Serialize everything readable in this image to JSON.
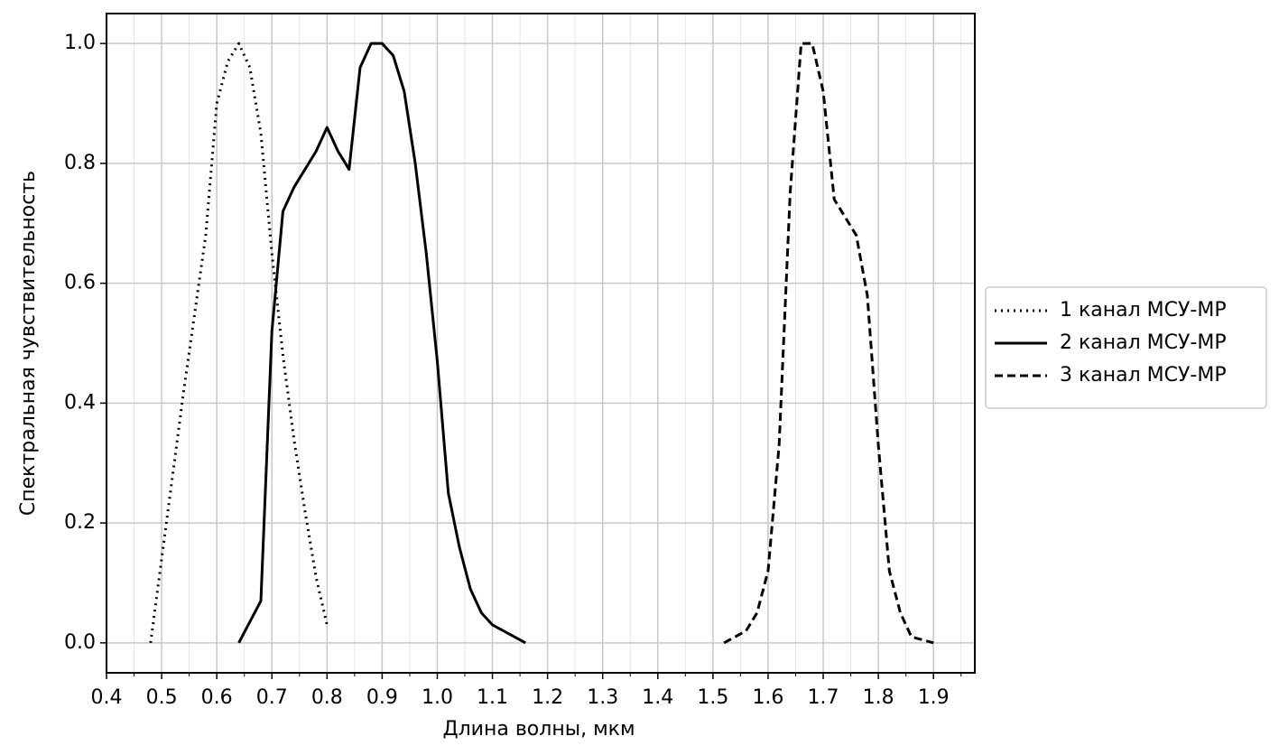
{
  "chart_data": {
    "type": "line",
    "x_label": "Длина волны, мкм",
    "y_label": "Спектральная чувствительность",
    "xlim": [
      0.4,
      1.975
    ],
    "ylim": [
      -0.05,
      1.05
    ],
    "xticks": [
      0.4,
      0.5,
      0.6,
      0.7,
      0.8,
      0.9,
      {
        "value": 1,
        "label": "1.0"
      },
      1.1,
      1.2,
      1.3,
      1.4,
      1.5,
      1.6,
      1.7,
      1.8,
      1.9
    ],
    "xminorticks": [
      0.45,
      0.55,
      0.65,
      0.75,
      0.85,
      0.95,
      1.05,
      1.15,
      1.25,
      1.35,
      1.45,
      1.55,
      1.65,
      1.75,
      1.85,
      1.95
    ],
    "yticks": [
      {
        "value": 0,
        "label": "0.0"
      },
      0.2,
      0.4,
      0.6,
      0.8,
      {
        "value": 1,
        "label": "1.0"
      }
    ],
    "grid": true,
    "legend": "right",
    "series": [
      {
        "name": "1 канал МСУ-МР",
        "color": "#000000",
        "linestyle": "dotted",
        "x": [
          0.48,
          0.5,
          0.52,
          0.54,
          0.56,
          0.58,
          0.6,
          0.62,
          0.64,
          0.66,
          0.68,
          0.7,
          0.72,
          0.74,
          0.76,
          0.78,
          0.8
        ],
        "values": [
          0,
          0.14,
          0.28,
          0.42,
          0.55,
          0.68,
          0.9,
          0.97,
          1.0,
          0.96,
          0.85,
          0.65,
          0.48,
          0.34,
          0.22,
          0.11,
          0.03
        ]
      },
      {
        "name": "2 канал МСУ-МР",
        "color": "#000000",
        "linestyle": "solid",
        "x": [
          0.64,
          0.68,
          0.7,
          0.72,
          0.74,
          0.76,
          0.78,
          0.8,
          0.82,
          0.84,
          0.86,
          0.88,
          0.9,
          0.92,
          0.94,
          0.96,
          0.98,
          1.0,
          1.02,
          1.04,
          1.06,
          1.08,
          1.1,
          1.12,
          1.16
        ],
        "values": [
          0,
          0.07,
          0.52,
          0.72,
          0.76,
          0.79,
          0.82,
          0.86,
          0.82,
          0.79,
          0.96,
          1.0,
          1.0,
          0.98,
          0.92,
          0.8,
          0.65,
          0.47,
          0.25,
          0.16,
          0.09,
          0.05,
          0.03,
          0.02,
          0
        ]
      },
      {
        "name": "3 канал МСУ-МР",
        "color": "#000000",
        "linestyle": "dashed",
        "x": [
          1.52,
          1.56,
          1.58,
          1.6,
          1.62,
          1.64,
          1.66,
          1.68,
          1.7,
          1.72,
          1.74,
          1.76,
          1.78,
          1.8,
          1.82,
          1.84,
          1.86,
          1.88,
          1.9
        ],
        "values": [
          0,
          0.02,
          0.05,
          0.12,
          0.33,
          0.75,
          1.0,
          1.0,
          0.92,
          0.74,
          0.71,
          0.68,
          0.58,
          0.33,
          0.12,
          0.05,
          0.01,
          0.005,
          0
        ]
      }
    ]
  }
}
